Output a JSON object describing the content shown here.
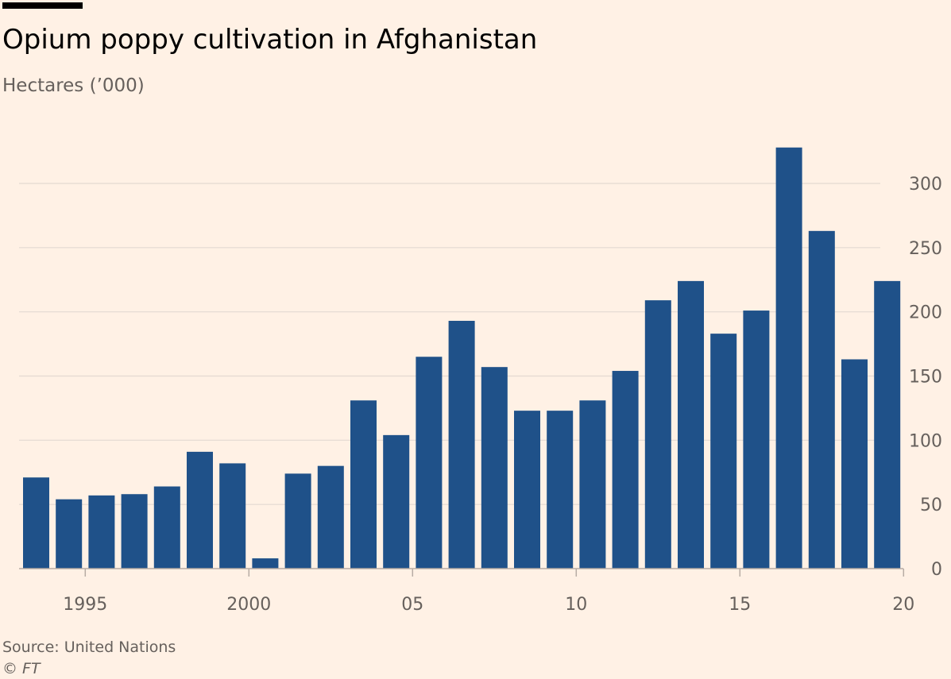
{
  "header": {
    "title": "Opium poppy cultivation in Afghanistan",
    "subtitle": "Hectares (’000)"
  },
  "footer": {
    "source": "Source: United Nations",
    "copyright_symbol": "©",
    "copyright_name": "FT"
  },
  "colors": {
    "background": "#FFF1E5",
    "bar": "#1F5189",
    "gridline": "#E3D9D1",
    "baseline": "#B7ACA4",
    "tick_text": "#66605C"
  },
  "chart_data": {
    "type": "bar",
    "title": "Opium poppy cultivation in Afghanistan",
    "subtitle": "Hectares (’000)",
    "categories": [
      "1994",
      "1995",
      "1996",
      "1997",
      "1998",
      "1999",
      "2000",
      "2001",
      "2002",
      "2003",
      "2004",
      "2005",
      "2006",
      "2007",
      "2008",
      "2009",
      "2010",
      "2011",
      "2012",
      "2013",
      "2014",
      "2015",
      "2016",
      "2017",
      "2018",
      "2019",
      "2020"
    ],
    "values": [
      71,
      54,
      57,
      58,
      64,
      91,
      82,
      8,
      74,
      80,
      131,
      104,
      165,
      193,
      157,
      123,
      123,
      131,
      154,
      209,
      224,
      183,
      201,
      328,
      263,
      163,
      224
    ],
    "ylim": [
      0,
      330
    ],
    "yticks": [
      0,
      50,
      100,
      150,
      200,
      250,
      300
    ],
    "ytick_labels": [
      "0",
      "50",
      "100",
      "150",
      "200",
      "250",
      "300"
    ],
    "y_axis_side": "right",
    "xticks": [
      {
        "category": "1995",
        "label": "1995"
      },
      {
        "category": "2000",
        "label": "2000"
      },
      {
        "category": "2005",
        "label": "05"
      },
      {
        "category": "2010",
        "label": "10"
      },
      {
        "category": "2015",
        "label": "15"
      },
      {
        "category": "2020",
        "label": "20"
      }
    ],
    "grid": true,
    "xlabel": "",
    "ylabel": ""
  }
}
